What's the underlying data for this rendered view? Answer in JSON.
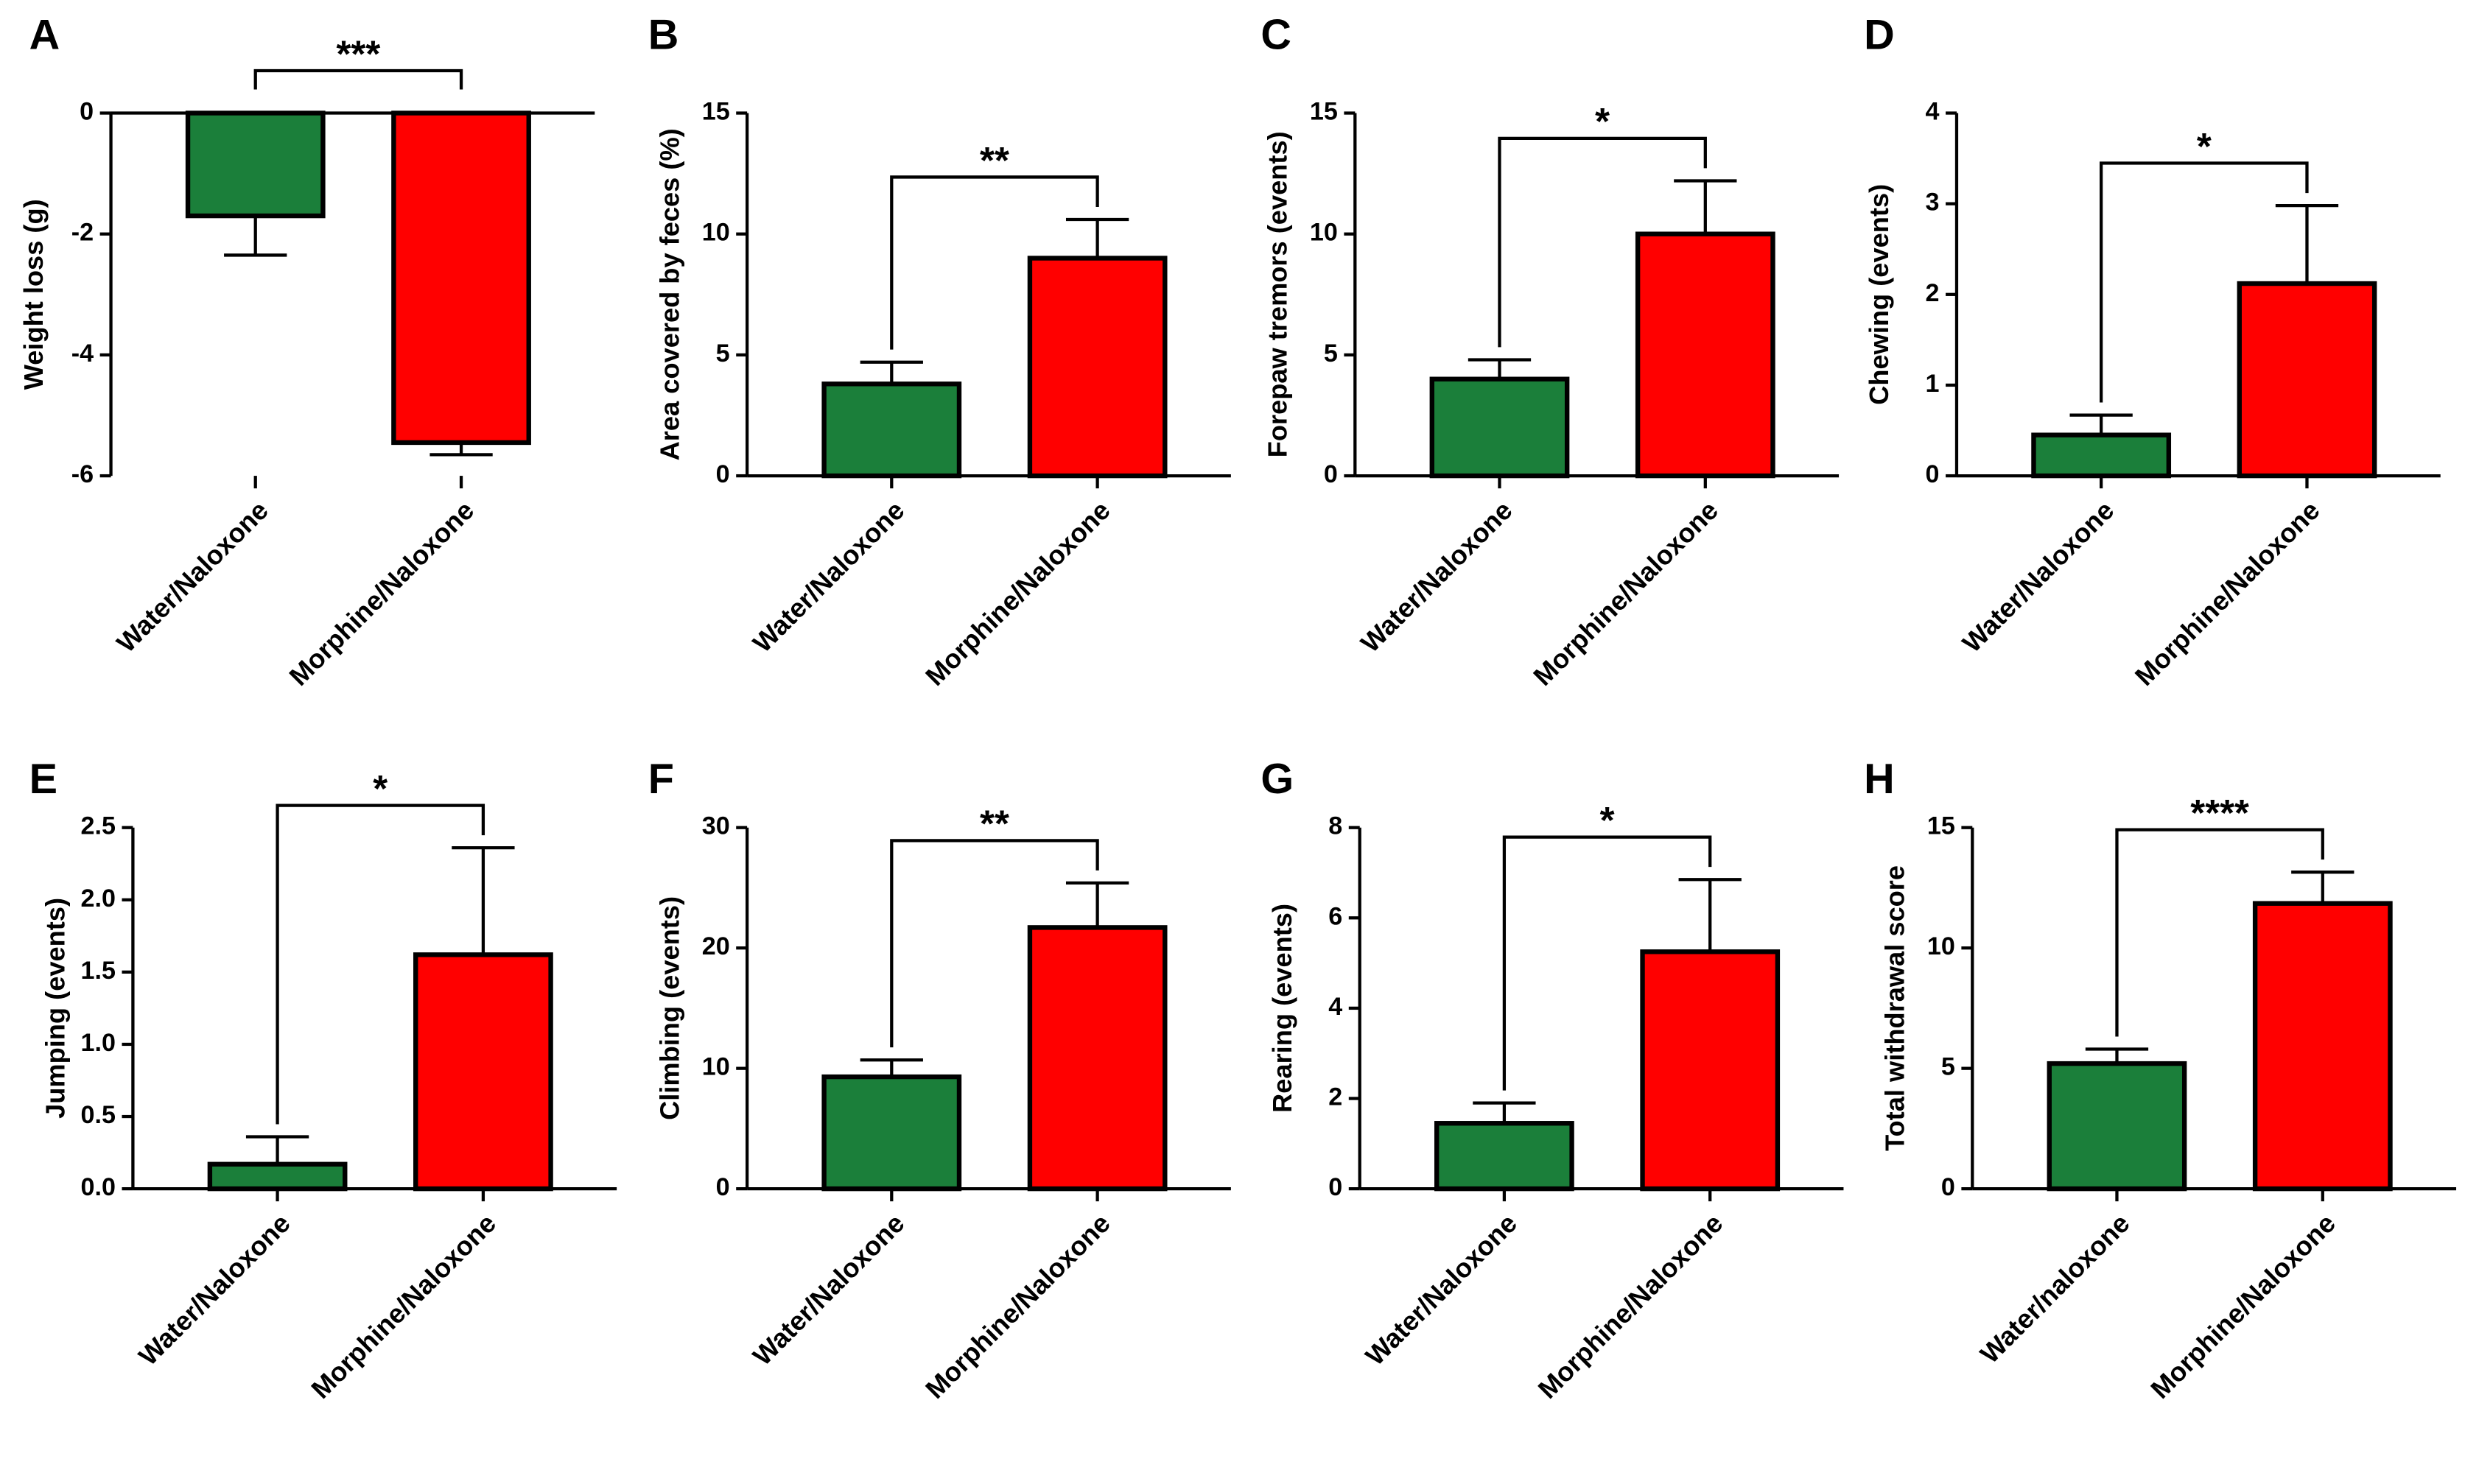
{
  "chart_data": [
    {
      "type": "bar",
      "panel": "A",
      "ylabel": "Weight loss (g)",
      "categories": [
        "Water/Naloxone",
        "Morphine/Naloxone"
      ],
      "values": [
        -1.7,
        -5.45
      ],
      "errors": [
        0.65,
        0.2
      ],
      "colors": [
        "#1b7f3a",
        "#ff0000"
      ],
      "ylim": [
        -6,
        0
      ],
      "yticks": [
        0,
        -2,
        -4,
        -6
      ],
      "significance": "***"
    },
    {
      "type": "bar",
      "panel": "B",
      "ylabel": "Area covered by feces (%)",
      "categories": [
        "Water/Naloxone",
        "Morphine/Naloxone"
      ],
      "values": [
        3.8,
        9.0
      ],
      "errors": [
        0.9,
        1.6
      ],
      "colors": [
        "#1b7f3a",
        "#ff0000"
      ],
      "ylim": [
        0,
        15
      ],
      "yticks": [
        0,
        5,
        10,
        15
      ],
      "significance": "**"
    },
    {
      "type": "bar",
      "panel": "C",
      "ylabel": "Forepaw tremors (events)",
      "categories": [
        "Water/Naloxone",
        "Morphine/Naloxone"
      ],
      "values": [
        4.0,
        10.0
      ],
      "errors": [
        0.8,
        2.2
      ],
      "colors": [
        "#1b7f3a",
        "#ff0000"
      ],
      "ylim": [
        0,
        15
      ],
      "yticks": [
        0,
        5,
        10,
        15
      ],
      "significance": "*"
    },
    {
      "type": "bar",
      "panel": "D",
      "ylabel": "Chewing (events)",
      "categories": [
        "Water/Naloxone",
        "Morphine/Naloxone"
      ],
      "values": [
        0.45,
        2.12
      ],
      "errors": [
        0.22,
        0.86
      ],
      "colors": [
        "#1b7f3a",
        "#ff0000"
      ],
      "ylim": [
        0,
        4
      ],
      "yticks": [
        0,
        1,
        2,
        3,
        4
      ],
      "significance": "*"
    },
    {
      "type": "bar",
      "panel": "E",
      "ylabel": "Jumping (events)",
      "categories": [
        "Water/Naloxone",
        "Morphine/Naloxone"
      ],
      "values": [
        0.17,
        1.62
      ],
      "errors": [
        0.19,
        0.74
      ],
      "colors": [
        "#1b7f3a",
        "#ff0000"
      ],
      "ylim": [
        0,
        2.5
      ],
      "yticks": [
        {
          "value": 0,
          "label": "0.0"
        },
        0.5,
        {
          "value": 1,
          "label": "1.0"
        },
        1.5,
        {
          "value": 2,
          "label": "2.0"
        },
        2.5
      ],
      "significance": "*"
    },
    {
      "type": "bar",
      "panel": "F",
      "ylabel": "Climbing (events)",
      "categories": [
        "Water/Naloxone",
        "Morphine/Naloxone"
      ],
      "values": [
        9.3,
        21.7
      ],
      "errors": [
        1.4,
        3.7
      ],
      "colors": [
        "#1b7f3a",
        "#ff0000"
      ],
      "ylim": [
        0,
        30
      ],
      "yticks": [
        0,
        10,
        20,
        30
      ],
      "significance": "**"
    },
    {
      "type": "bar",
      "panel": "G",
      "ylabel": "Rearing (events)",
      "categories": [
        "Water/Naloxone",
        "Morphine/Naloxone"
      ],
      "values": [
        1.45,
        5.25
      ],
      "errors": [
        0.45,
        1.6
      ],
      "colors": [
        "#1b7f3a",
        "#ff0000"
      ],
      "ylim": [
        0,
        8
      ],
      "yticks": [
        0,
        2,
        4,
        6,
        8
      ],
      "significance": "*"
    },
    {
      "type": "bar",
      "panel": "H",
      "ylabel": "Total withdrawal score",
      "categories": [
        "Water/naloxone",
        "Morphine/Naloxone"
      ],
      "values": [
        5.2,
        11.85
      ],
      "errors": [
        0.6,
        1.3
      ],
      "colors": [
        "#1b7f3a",
        "#ff0000"
      ],
      "ylim": [
        0,
        15
      ],
      "yticks": [
        0,
        5,
        10,
        15
      ],
      "significance": "****"
    }
  ]
}
